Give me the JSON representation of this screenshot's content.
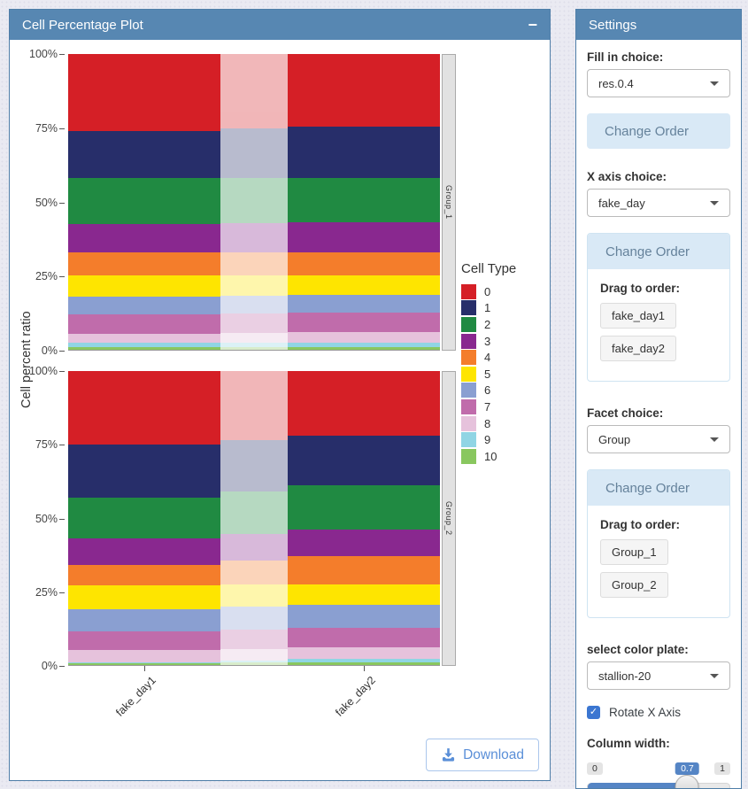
{
  "theme": {
    "header_blue": "#5787b2",
    "info_bg": "#d9e9f6",
    "accent_checkbox": "#3b76d1",
    "slider_fill": "#5585c5",
    "download_blue": "#5a8fd8"
  },
  "left_panel": {
    "title": "Cell Percentage Plot",
    "collapse_label": "−",
    "download_label": "Download"
  },
  "chart_data": {
    "type": "bar",
    "stacked": true,
    "orientation": "vertical",
    "title": "",
    "xlabel": "",
    "ylabel": "Cell percent ratio",
    "ylim": [
      "0%",
      "100%"
    ],
    "y_ticks": [
      "100%",
      "75%",
      "50%",
      "25%",
      "0%"
    ],
    "x_categories": [
      "fake_day1",
      "fake_day2"
    ],
    "facets": [
      "Group_1",
      "Group_2"
    ],
    "legend_title": "Cell Type",
    "legend_position": "right",
    "cell_types": [
      "0",
      "1",
      "2",
      "3",
      "4",
      "5",
      "6",
      "7",
      "8",
      "9",
      "10"
    ],
    "colors": [
      "#D51F26",
      "#272E6A",
      "#208A42",
      "#89288F",
      "#F47D2B",
      "#FEE500",
      "#8A9FD1",
      "#C06CAB",
      "#E6C2DC",
      "#90D5E4",
      "#89C75F"
    ],
    "values_note": "percent of cells per cell type (order 0..10, top-to-bottom of stack)",
    "facet_values": [
      {
        "facet": "Group_1",
        "bars": [
          {
            "x": "fake_day1",
            "values": [
              26,
              16,
              15.5,
              9.5,
              8,
              7,
              6,
              6.5,
              3,
              1.5,
              1
            ]
          },
          {
            "x": "fake_day2",
            "values": [
              24.5,
              17.5,
              15,
              10,
              8,
              6.5,
              6,
              6.5,
              3.5,
              1.5,
              1
            ]
          }
        ]
      },
      {
        "facet": "Group_2",
        "bars": [
          {
            "x": "fake_day1",
            "values": [
              25,
              18,
              14,
              9,
              7,
              8,
              7.5,
              6.5,
              4,
              0.5,
              0.5
            ]
          },
          {
            "x": "fake_day2",
            "values": [
              22,
              17,
              15,
              9,
              9.5,
              7,
              8,
              6.5,
              4,
              1,
              1
            ]
          }
        ]
      }
    ]
  },
  "settings": {
    "title": "Settings",
    "fill_label": "Fill in choice:",
    "fill_value": "res.0.4",
    "change_order_label": "Change Order",
    "xaxis_label": "X axis choice:",
    "xaxis_value": "fake_day",
    "drag_label": "Drag to order:",
    "xaxis_items": [
      "fake_day1",
      "fake_day2"
    ],
    "facet_label": "Facet choice:",
    "facet_value": "Group",
    "facet_items": [
      "Group_1",
      "Group_2"
    ],
    "palette_label": "select color plate:",
    "palette_value": "stallion-20",
    "rotate_label": "Rotate X Axis",
    "rotate_checked": true,
    "column_width_label": "Column width:",
    "slider": {
      "min": "0",
      "max": "1",
      "value": "0.7"
    }
  }
}
